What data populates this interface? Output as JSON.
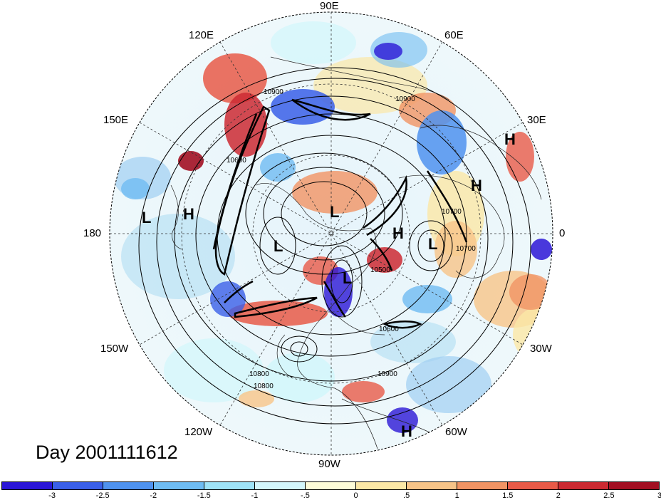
{
  "title": "Day 2001111612",
  "longitude_labels": {
    "top": "90E",
    "top_left": "120E",
    "top_right": "60E",
    "upper_left": "150E",
    "upper_right": "30E",
    "left": "180",
    "right": "0",
    "lower_left": "150W",
    "lower_right": "30W",
    "bottom_left": "120W",
    "bottom_right": "60W",
    "bottom": "90W"
  },
  "pressure_centers": [
    "L",
    "H",
    "L",
    "L",
    "L",
    "H",
    "L",
    "H",
    "H",
    "H"
  ],
  "contour_labels": [
    "10900",
    "10900",
    "10800",
    "10600",
    "10500",
    "10700",
    "10600",
    "10900",
    "10800",
    "10700"
  ],
  "colorbar": {
    "labels": [
      "-3",
      "-2.5",
      "-2",
      "-1.5",
      "-1",
      "-.5",
      "0",
      ".5",
      "1",
      "1.5",
      "2",
      "2.5",
      "3"
    ],
    "colors": [
      "#2b16d6",
      "#3a5fe8",
      "#4f92ee",
      "#6fbcf2",
      "#9fe3f7",
      "#d4f6fb",
      "#fdfbd8",
      "#fbe7a6",
      "#f7c488",
      "#f19464",
      "#e85a48",
      "#cc2a32",
      "#a30f22"
    ]
  }
}
